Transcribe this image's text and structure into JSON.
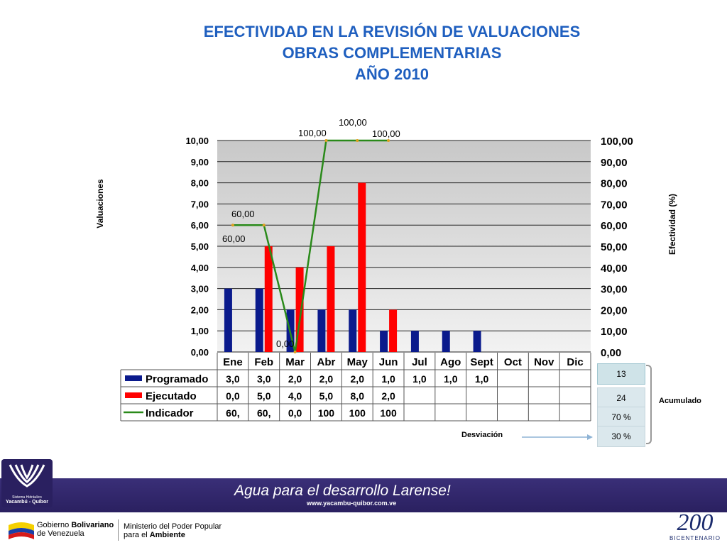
{
  "title": {
    "line1": "EFECTIVIDAD EN LA REVISIÓN DE VALUACIONES",
    "line2": "OBRAS COMPLEMENTARIAS",
    "line3": "AÑO 2010"
  },
  "chart_data": {
    "type": "bar",
    "categories": [
      "Ene",
      "Feb",
      "Mar",
      "Abr",
      "May",
      "Jun",
      "Jul",
      "Ago",
      "Sept",
      "Oct",
      "Nov",
      "Dic"
    ],
    "series": [
      {
        "name": "Programado",
        "type": "bar",
        "axis": "left",
        "color": "#0a1a8c",
        "values": [
          3.0,
          3.0,
          2.0,
          2.0,
          2.0,
          1.0,
          1.0,
          1.0,
          1.0,
          null,
          null,
          null
        ]
      },
      {
        "name": "Ejecutado",
        "type": "bar",
        "axis": "left",
        "color": "#ff0000",
        "values": [
          0.0,
          5.0,
          4.0,
          5.0,
          8.0,
          2.0,
          null,
          null,
          null,
          null,
          null,
          null
        ]
      },
      {
        "name": "Indicador",
        "type": "line",
        "axis": "right",
        "color": "#2a8a1a",
        "values": [
          60,
          60,
          0,
          100,
          100,
          100,
          null,
          null,
          null,
          null,
          null,
          null
        ]
      }
    ],
    "ylabel": "Valuaciones",
    "y2label": "Efectividad  (%)",
    "ylim": [
      0,
      10
    ],
    "y2lim": [
      0,
      100
    ],
    "yticks": [
      "0,00",
      "1,00",
      "2,00",
      "3,00",
      "4,00",
      "5,00",
      "6,00",
      "7,00",
      "8,00",
      "9,00",
      "10,00"
    ],
    "y2ticks": [
      "0,00",
      "10,00",
      "20,00",
      "30,00",
      "40,00",
      "50,00",
      "60,00",
      "70,00",
      "80,00",
      "90,00",
      "100,00"
    ],
    "line_labels": [
      "60,00",
      "60,00",
      "0,00",
      "100,00",
      "100,00",
      "100,00"
    ],
    "table": {
      "Programado": [
        "3,0",
        "3,0",
        "2,0",
        "2,0",
        "2,0",
        "1,0",
        "1,0",
        "1,0",
        "1,0",
        "",
        "",
        ""
      ],
      "Ejecutado": [
        "0,0",
        "5,0",
        "4,0",
        "5,0",
        "8,0",
        "2,0",
        "",
        "",
        "",
        "",
        "",
        ""
      ],
      "Indicador": [
        "60,",
        "60,",
        "0,0",
        "100",
        "100",
        "100",
        "",
        "",
        "",
        "",
        "",
        ""
      ]
    }
  },
  "side": {
    "programado_total": "13",
    "ejecutado_total": "24",
    "efectividad": "70 %",
    "desviacion": "30 %",
    "acumulado_label": "Acumulado",
    "desviacion_label": "Desviación"
  },
  "footer": {
    "slogan_a": "Agua para el desarrollo ",
    "slogan_b": "Larense!",
    "url": "www.yacambu-quibor.com.ve",
    "logo_line1": "Sistema Hidráulico",
    "logo_line2": "Yacambú - Quíbor",
    "gov_line1a": "Gobierno ",
    "gov_line1b": "Bolivariano",
    "gov_line2": "de Venezuela",
    "min_line1": "Ministerio del Poder Popular",
    "min_line2a": "para el ",
    "min_line2b": "Ambiente",
    "bicentenario": "BICENTENARIO",
    "bicentenario_num": "200"
  }
}
